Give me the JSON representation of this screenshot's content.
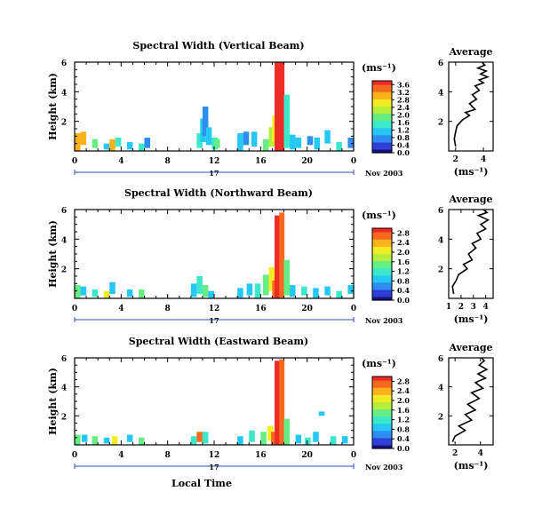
{
  "figure": {
    "xlabel": "Local Time",
    "date_label": "Nov 2003",
    "day_label": "17",
    "cbar_unit": "(ms⁻¹)",
    "avg_title": "Average",
    "avg_xlabel": "(ms⁻¹)",
    "colors": [
      "#15127a",
      "#2f3fd6",
      "#2d8ef0",
      "#25c8f2",
      "#3ce8c9",
      "#66ee84",
      "#b7ee3c",
      "#f2ec24",
      "#f7b21c",
      "#f56a1e",
      "#ef2b25"
    ]
  },
  "chart_data": [
    {
      "type": "heatmap",
      "title": "Spectral Width (Vertical Beam)",
      "ylabel": "Height (km)",
      "xlim": [
        0,
        24
      ],
      "ylim": [
        0,
        6
      ],
      "x_ticks": [
        "0",
        "4",
        "8",
        "12",
        "16",
        "20",
        "0"
      ],
      "y_ticks": [
        "2",
        "4",
        "6"
      ],
      "x_unit": "hours",
      "cbar_ticks": [
        "0.0",
        "0.4",
        "0.8",
        "1.2",
        "1.6",
        "2.0",
        "2.4",
        "2.8",
        "3.2",
        "3.6"
      ],
      "cbar_range": [
        0,
        3.8
      ],
      "cells": [
        [
          0.0,
          0.0,
          3.0,
          1.2
        ],
        [
          0.5,
          0.4,
          3.0,
          0.9
        ],
        [
          1.5,
          0.2,
          2.0,
          0.6
        ],
        [
          2.5,
          0.1,
          1.0,
          0.4
        ],
        [
          3.0,
          0.0,
          3.2,
          0.8
        ],
        [
          3.5,
          0.3,
          1.5,
          0.6
        ],
        [
          4.5,
          0.1,
          1.0,
          0.5
        ],
        [
          5.5,
          0.0,
          1.5,
          0.5
        ],
        [
          6.0,
          0.2,
          0.6,
          0.7
        ],
        [
          10.5,
          0.2,
          1.5,
          1.0
        ],
        [
          10.8,
          0.6,
          1.0,
          1.6
        ],
        [
          11.0,
          1.0,
          0.6,
          2.0
        ],
        [
          11.3,
          0.4,
          1.2,
          1.2
        ],
        [
          11.8,
          0.1,
          1.6,
          0.8
        ],
        [
          12.0,
          0.2,
          1.8,
          0.6
        ],
        [
          14.0,
          0.0,
          1.2,
          1.2
        ],
        [
          14.5,
          0.4,
          0.8,
          0.9
        ],
        [
          15.2,
          0.3,
          1.0,
          1.0
        ],
        [
          16.2,
          0.0,
          1.8,
          0.8
        ],
        [
          16.7,
          0.3,
          2.2,
          1.3
        ],
        [
          17.0,
          0.6,
          2.8,
          1.8
        ],
        [
          17.2,
          0.0,
          4.5,
          6.0
        ],
        [
          17.6,
          0.0,
          3.8,
          6.0
        ],
        [
          18.0,
          0.2,
          1.5,
          3.6
        ],
        [
          18.5,
          0.1,
          1.0,
          1.0
        ],
        [
          19.0,
          0.2,
          1.3,
          0.7
        ],
        [
          20.0,
          0.4,
          0.6,
          0.6
        ],
        [
          20.6,
          0.1,
          1.0,
          0.8
        ],
        [
          21.5,
          0.5,
          1.2,
          0.9
        ],
        [
          22.5,
          0.0,
          1.4,
          0.6
        ],
        [
          23.5,
          0.2,
          0.9,
          0.7
        ]
      ],
      "average": {
        "xlim": [
          1.5,
          4.7
        ],
        "x_ticks": [
          "2",
          "4"
        ],
        "y_ticks": [
          "2",
          "4",
          "6"
        ],
        "profile": [
          [
            2.0,
            0.3
          ],
          [
            1.9,
            0.8
          ],
          [
            2.0,
            1.3
          ],
          [
            2.1,
            1.7
          ],
          [
            2.5,
            2.1
          ],
          [
            3.0,
            2.4
          ],
          [
            2.7,
            2.6
          ],
          [
            3.4,
            2.8
          ],
          [
            3.0,
            3.2
          ],
          [
            3.5,
            3.5
          ],
          [
            3.2,
            3.8
          ],
          [
            3.7,
            4.1
          ],
          [
            3.4,
            4.4
          ],
          [
            4.0,
            4.6
          ],
          [
            3.7,
            4.8
          ],
          [
            4.3,
            5.0
          ],
          [
            3.8,
            5.2
          ],
          [
            4.2,
            5.4
          ],
          [
            3.6,
            5.6
          ],
          [
            4.1,
            5.8
          ],
          [
            3.9,
            6.0
          ]
        ]
      }
    },
    {
      "type": "heatmap",
      "title": "Spectral Width (Northward Beam)",
      "ylabel": "Height (km)",
      "xlim": [
        0,
        24
      ],
      "ylim": [
        0,
        6
      ],
      "x_ticks": [
        "0",
        "4",
        "8",
        "12",
        "16",
        "20",
        "0"
      ],
      "y_ticks": [
        "2",
        "4",
        "6"
      ],
      "x_unit": "hours",
      "cbar_ticks": [
        "0.0",
        "0.4",
        "0.8",
        "1.2",
        "1.6",
        "2.0",
        "2.4",
        "2.8"
      ],
      "cbar_range": [
        0,
        3.0
      ],
      "cells": [
        [
          0.0,
          0.0,
          1.5,
          0.9
        ],
        [
          0.5,
          0.2,
          1.0,
          0.6
        ],
        [
          1.5,
          0.1,
          1.2,
          0.5
        ],
        [
          2.5,
          0.0,
          2.0,
          0.5
        ],
        [
          3.0,
          0.3,
          1.0,
          0.8
        ],
        [
          4.5,
          0.1,
          1.0,
          0.5
        ],
        [
          5.5,
          0.0,
          1.5,
          0.6
        ],
        [
          10.0,
          0.1,
          1.0,
          0.9
        ],
        [
          10.5,
          0.3,
          1.2,
          1.2
        ],
        [
          11.0,
          0.1,
          1.6,
          0.8
        ],
        [
          11.5,
          0.0,
          1.0,
          0.5
        ],
        [
          14.0,
          0.0,
          1.0,
          0.7
        ],
        [
          14.8,
          0.2,
          0.8,
          0.8
        ],
        [
          15.5,
          0.0,
          1.3,
          1.0
        ],
        [
          16.2,
          0.2,
          1.6,
          1.4
        ],
        [
          16.7,
          0.5,
          2.0,
          1.6
        ],
        [
          17.0,
          0.0,
          2.6,
          1.2
        ],
        [
          17.2,
          0.0,
          2.9,
          5.6
        ],
        [
          17.6,
          0.0,
          2.6,
          5.8
        ],
        [
          18.0,
          0.2,
          1.5,
          2.4
        ],
        [
          18.5,
          0.1,
          1.0,
          0.8
        ],
        [
          19.5,
          0.2,
          1.3,
          0.6
        ],
        [
          20.5,
          0.0,
          1.0,
          0.7
        ],
        [
          21.5,
          0.2,
          0.9,
          0.6
        ],
        [
          22.5,
          0.0,
          1.2,
          0.5
        ],
        [
          23.5,
          0.3,
          0.8,
          0.6
        ]
      ],
      "average": {
        "xlim": [
          1.0,
          4.6
        ],
        "x_ticks": [
          "1",
          "2",
          "3",
          "4"
        ],
        "y_ticks": [
          "2",
          "4",
          "6"
        ],
        "profile": [
          [
            1.4,
            0.3
          ],
          [
            1.3,
            0.8
          ],
          [
            1.6,
            1.2
          ],
          [
            1.8,
            1.6
          ],
          [
            2.5,
            2.0
          ],
          [
            2.2,
            2.3
          ],
          [
            2.9,
            2.6
          ],
          [
            2.6,
            3.0
          ],
          [
            3.2,
            3.4
          ],
          [
            2.9,
            3.7
          ],
          [
            3.6,
            4.0
          ],
          [
            3.3,
            4.4
          ],
          [
            4.0,
            4.7
          ],
          [
            3.6,
            5.0
          ],
          [
            4.2,
            5.3
          ],
          [
            3.4,
            5.6
          ],
          [
            4.1,
            5.8
          ],
          [
            3.8,
            6.0
          ]
        ]
      }
    },
    {
      "type": "heatmap",
      "title": "Spectral Width (Eastward Beam)",
      "ylabel": "Height (km)",
      "xlim": [
        0,
        24
      ],
      "ylim": [
        0,
        6
      ],
      "x_ticks": [
        "0",
        "4",
        "8",
        "12",
        "16",
        "20",
        "0"
      ],
      "y_ticks": [
        "2",
        "4",
        "6"
      ],
      "x_unit": "hours",
      "cbar_ticks": [
        "0.0",
        "0.4",
        "0.8",
        "1.2",
        "1.6",
        "2.0",
        "2.4",
        "2.8"
      ],
      "cbar_range": [
        0,
        3.0
      ],
      "cells": [
        [
          0.0,
          0.0,
          1.5,
          0.7
        ],
        [
          0.6,
          0.2,
          1.0,
          0.5
        ],
        [
          1.5,
          0.0,
          1.6,
          0.6
        ],
        [
          2.5,
          0.1,
          1.0,
          0.4
        ],
        [
          3.2,
          0.0,
          2.0,
          0.6
        ],
        [
          4.5,
          0.2,
          1.0,
          0.5
        ],
        [
          5.5,
          0.0,
          1.4,
          0.5
        ],
        [
          10.0,
          0.0,
          1.2,
          0.6
        ],
        [
          10.5,
          0.2,
          2.6,
          0.7
        ],
        [
          11.0,
          0.1,
          1.2,
          0.8
        ],
        [
          14.0,
          0.0,
          1.0,
          0.6
        ],
        [
          15.0,
          0.2,
          1.2,
          0.8
        ],
        [
          16.0,
          0.0,
          1.5,
          0.9
        ],
        [
          16.6,
          0.3,
          2.0,
          1.0
        ],
        [
          16.9,
          0.0,
          2.6,
          0.9
        ],
        [
          17.2,
          0.0,
          2.9,
          5.8
        ],
        [
          17.6,
          0.0,
          2.8,
          5.9
        ],
        [
          18.0,
          0.0,
          1.4,
          1.8
        ],
        [
          19.0,
          0.1,
          1.0,
          0.6
        ],
        [
          19.8,
          0.0,
          1.3,
          0.5
        ],
        [
          20.5,
          0.2,
          0.9,
          0.7
        ],
        [
          21.0,
          2.0,
          1.0,
          0.3
        ],
        [
          22.0,
          0.0,
          1.1,
          0.6
        ],
        [
          23.0,
          0.1,
          0.9,
          0.5
        ]
      ],
      "average": {
        "xlim": [
          1.5,
          5.0
        ],
        "x_ticks": [
          "2",
          "4"
        ],
        "y_ticks": [
          "2",
          "4",
          "6"
        ],
        "profile": [
          [
            1.8,
            0.2
          ],
          [
            2.0,
            0.6
          ],
          [
            2.8,
            1.0
          ],
          [
            2.3,
            1.3
          ],
          [
            3.3,
            1.7
          ],
          [
            2.8,
            2.1
          ],
          [
            3.6,
            2.4
          ],
          [
            3.0,
            2.8
          ],
          [
            3.9,
            3.2
          ],
          [
            3.3,
            3.6
          ],
          [
            4.2,
            3.9
          ],
          [
            3.6,
            4.3
          ],
          [
            4.4,
            4.6
          ],
          [
            3.8,
            4.9
          ],
          [
            4.5,
            5.2
          ],
          [
            3.9,
            5.5
          ],
          [
            4.3,
            5.8
          ],
          [
            4.1,
            6.0
          ]
        ]
      }
    }
  ]
}
